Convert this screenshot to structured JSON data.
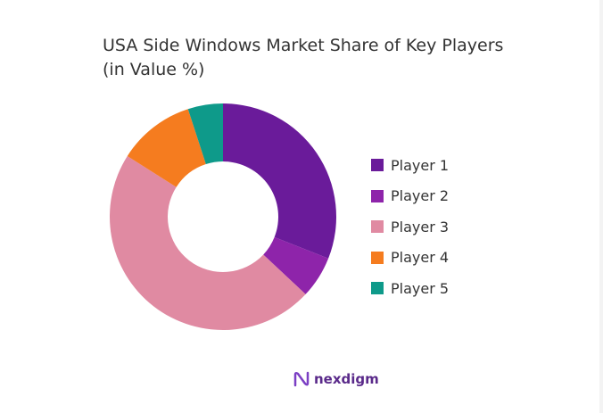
{
  "chart_data": {
    "type": "pie",
    "donut": true,
    "title": "USA Side Windows Market Share of Key Players (in Value %)",
    "categories": [
      "Player 1",
      "Player 2",
      "Player 3",
      "Player 4",
      "Player 5"
    ],
    "values": [
      31,
      6,
      47,
      11,
      5
    ],
    "colors": [
      "#6a1b9a",
      "#8e24aa",
      "#e08aa2",
      "#f57c1f",
      "#0e9a8a"
    ],
    "legend": "right"
  },
  "brand": {
    "logo_text": "nexdigm"
  }
}
